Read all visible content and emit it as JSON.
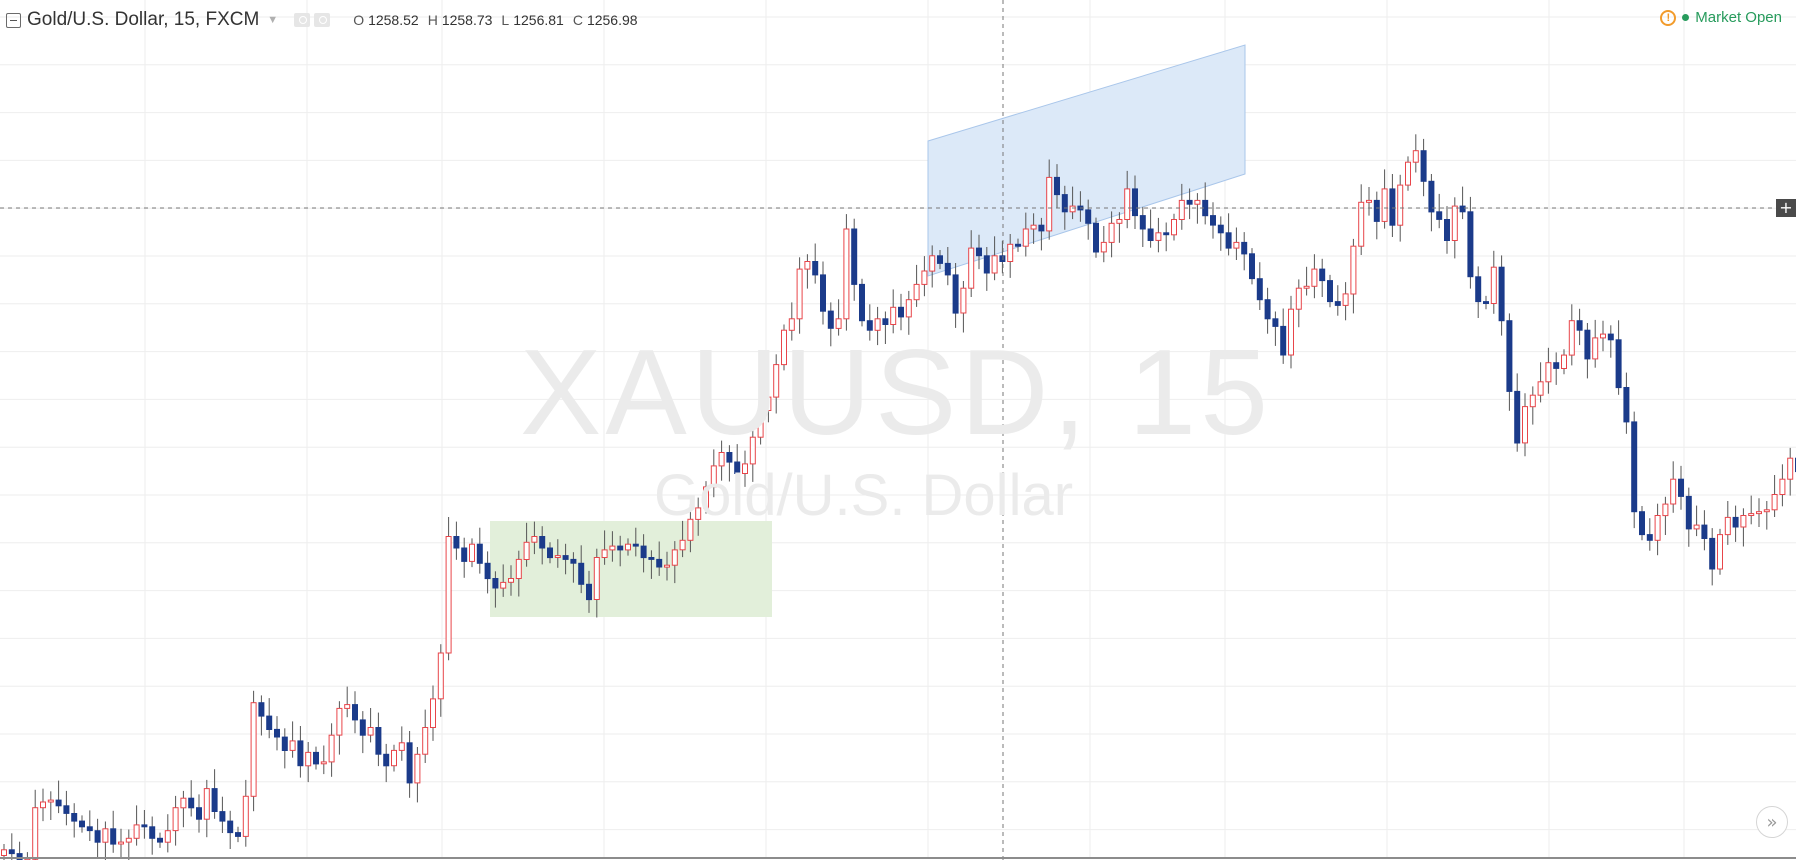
{
  "header": {
    "title": "Gold/U.S. Dollar, 15, FXCM",
    "ohlc": [
      {
        "label": "O",
        "value": "1258.52"
      },
      {
        "label": "H",
        "value": "1258.73"
      },
      {
        "label": "L",
        "value": "1256.81"
      },
      {
        "label": "C",
        "value": "1256.98"
      }
    ]
  },
  "status": {
    "alert_icon": "!",
    "market_status": "Market Open"
  },
  "watermark": {
    "symbol": "XAUUSD, 15",
    "description": "Gold/U.S. Dollar"
  },
  "controls": {
    "plus_label": "+",
    "scroll_label": "»"
  },
  "colors": {
    "up": "#e8454a",
    "down": "#1b3b8a",
    "grid": "#eeeeee",
    "rectangle_fill": "#e2efda",
    "channel_fill": "#dce9f8",
    "crosshair": "#777777"
  },
  "chart_data": {
    "type": "candlestick",
    "symbol": "XAUUSD",
    "interval": "15",
    "closes": [
      1226.4,
      1226.2,
      1225.1,
      1225.9,
      1228.6,
      1228.9,
      1229.0,
      1228.7,
      1228.3,
      1227.9,
      1227.6,
      1227.4,
      1226.8,
      1227.5,
      1226.7,
      1226.8,
      1227.0,
      1227.7,
      1227.6,
      1227.0,
      1226.8,
      1227.4,
      1228.6,
      1229.1,
      1228.6,
      1228.0,
      1229.6,
      1228.4,
      1227.9,
      1227.3,
      1227.1,
      1229.2,
      1234.1,
      1233.4,
      1232.7,
      1232.3,
      1231.6,
      1232.1,
      1230.8,
      1231.5,
      1230.9,
      1231.0,
      1232.4,
      1233.8,
      1234.0,
      1233.2,
      1232.4,
      1232.8,
      1231.4,
      1230.8,
      1231.6,
      1232.0,
      1229.9,
      1231.4,
      1232.8,
      1234.3,
      1236.7,
      1242.8,
      1242.2,
      1241.5,
      1242.4,
      1241.4,
      1240.6,
      1240.1,
      1240.4,
      1240.6,
      1241.6,
      1242.5,
      1242.8,
      1242.2,
      1241.7,
      1241.8,
      1241.6,
      1241.4,
      1240.3,
      1239.5,
      1241.7,
      1242.1,
      1242.3,
      1242.1,
      1242.4,
      1242.3,
      1241.7,
      1241.6,
      1241.2,
      1241.3,
      1242.1,
      1242.6,
      1243.7,
      1244.3,
      1245.4,
      1246.5,
      1247.2,
      1246.7,
      1246.1,
      1246.6,
      1248.0,
      1249.4,
      1250.1,
      1251.8,
      1253.6,
      1254.2,
      1256.8,
      1257.2,
      1256.5,
      1254.6,
      1253.7,
      1254.2,
      1258.9,
      1256.0,
      1254.1,
      1253.6,
      1254.2,
      1253.9,
      1254.8,
      1254.3,
      1255.2,
      1256.0,
      1256.7,
      1257.5,
      1257.1,
      1256.5,
      1254.5,
      1255.8,
      1257.9,
      1257.5,
      1256.6,
      1257.5,
      1257.2,
      1258.1,
      1258.0,
      1258.9,
      1259.1,
      1258.8,
      1261.6,
      1260.7,
      1259.8,
      1260.1,
      1259.9,
      1259.2,
      1257.7,
      1258.2,
      1259.2,
      1259.4,
      1261.0,
      1259.6,
      1258.9,
      1258.3,
      1258.7,
      1258.6,
      1259.4,
      1260.4,
      1260.2,
      1260.4,
      1259.6,
      1259.1,
      1258.7,
      1257.9,
      1258.2,
      1257.6,
      1256.3,
      1255.2,
      1254.2,
      1253.8,
      1252.3,
      1254.7,
      1255.8,
      1255.9,
      1256.8,
      1256.2,
      1255.1,
      1254.9,
      1255.5,
      1258.0,
      1260.3,
      1260.4,
      1259.3,
      1261.0,
      1259.1,
      1261.2,
      1262.4,
      1263.0,
      1261.4,
      1259.8,
      1259.4,
      1258.3,
      1260.1,
      1259.8,
      1256.4,
      1255.1,
      1255.0,
      1256.9,
      1254.1,
      1250.4,
      1247.7,
      1249.6,
      1250.2,
      1250.9,
      1251.9,
      1251.6,
      1252.3,
      1254.1,
      1253.6,
      1252.1,
      1253.2,
      1253.4,
      1253.1,
      1250.6,
      1248.8,
      1244.1,
      1242.9,
      1242.6,
      1243.9,
      1244.5,
      1245.8,
      1244.9,
      1243.2,
      1243.4,
      1242.7,
      1241.1,
      1242.9,
      1243.8,
      1243.3,
      1243.9,
      1244.0,
      1244.1,
      1244.2,
      1245.0,
      1245.8,
      1246.9,
      1246.2
    ],
    "highlight_range": {
      "type": "rectangle",
      "price_top": 1243.0,
      "price_bottom": 1239.0
    },
    "trend_channel": {
      "type": "parallel-channel"
    }
  }
}
